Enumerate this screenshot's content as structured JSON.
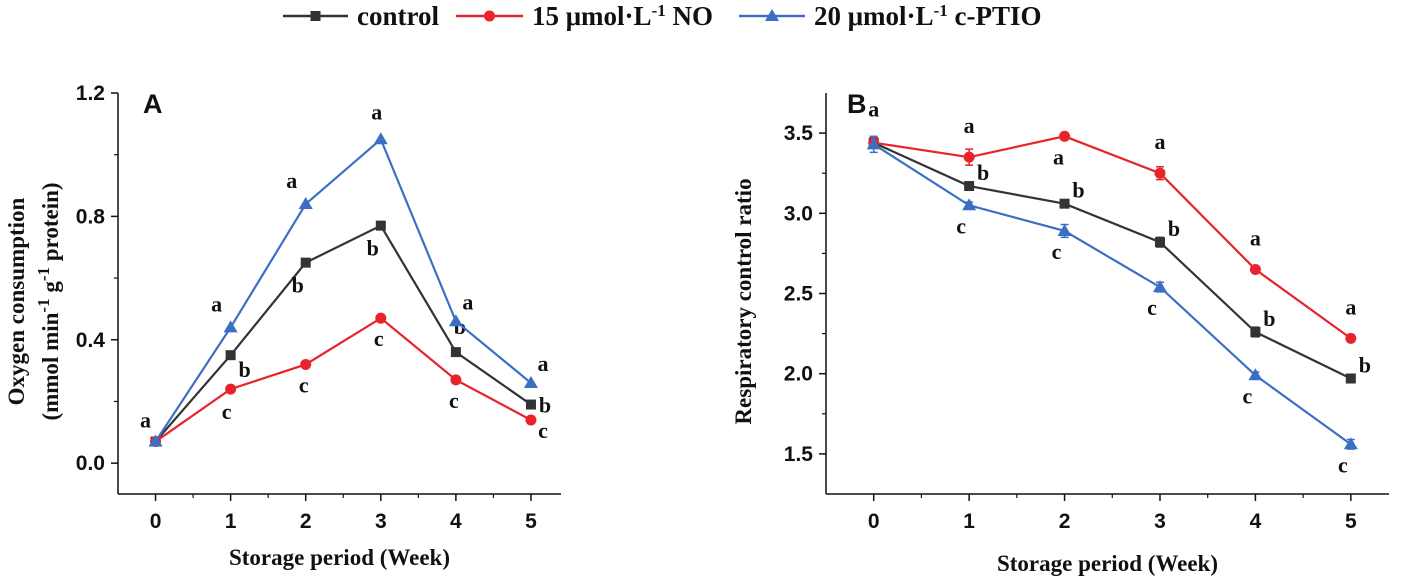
{
  "legend": {
    "items": [
      {
        "parts": [
          {
            "t": "control",
            "sup": false
          }
        ],
        "color": "#333333",
        "marker": "square"
      },
      {
        "parts": [
          {
            "t": "15 μmol·L",
            "sup": false
          },
          {
            "t": "-1",
            "sup": true
          },
          {
            "t": " NO",
            "sup": false
          }
        ],
        "color": "#e8232b",
        "marker": "circle"
      },
      {
        "parts": [
          {
            "t": "20 μmol·L",
            "sup": false
          },
          {
            "t": "-1",
            "sup": true
          },
          {
            "t": " c-PTIO",
            "sup": false
          }
        ],
        "color": "#3a6fc4",
        "marker": "triangle"
      }
    ]
  },
  "chart_data": [
    {
      "type": "line",
      "panel": "A",
      "xlabel": "Storage period (Week)",
      "ylabel_line1": "Oxygen consumption",
      "ylabel_line2_parts": [
        {
          "t": "(mmol min",
          "sup": false
        },
        {
          "t": "-1",
          "sup": true
        },
        {
          "t": " g",
          "sup": false
        },
        {
          "t": "-1",
          "sup": true
        },
        {
          "t": " protein)",
          "sup": false
        }
      ],
      "x": [
        0,
        1,
        2,
        3,
        4,
        5
      ],
      "xticks": [
        "0",
        "1",
        "2",
        "3",
        "4",
        "5"
      ],
      "xlim": [
        -0.5,
        5.4
      ],
      "ylim": [
        -0.1,
        1.2
      ],
      "yticks": [
        0.0,
        0.4,
        0.8,
        1.2
      ],
      "ytick_labels": [
        "0.0",
        "0.4",
        "0.8",
        "1.2"
      ],
      "series": [
        {
          "name": "control",
          "color": "#333333",
          "marker": "square",
          "values": [
            0.07,
            0.35,
            0.65,
            0.77,
            0.36,
            0.19
          ],
          "letters": [
            "",
            "b",
            "b",
            "b",
            "b",
            "b"
          ]
        },
        {
          "name": "15 μmol·L-1 NO",
          "color": "#e8232b",
          "marker": "circle",
          "values": [
            0.07,
            0.24,
            0.32,
            0.47,
            0.27,
            0.14
          ],
          "letters": [
            "",
            "c",
            "c",
            "c",
            "c",
            "c"
          ]
        },
        {
          "name": "20 μmol·L-1 c-PTIO",
          "color": "#3a6fc4",
          "marker": "triangle",
          "values": [
            0.07,
            0.44,
            0.84,
            1.05,
            0.46,
            0.26
          ],
          "letters": [
            "a",
            "a",
            "a",
            "a",
            "a",
            "a"
          ]
        }
      ]
    },
    {
      "type": "line",
      "panel": "B",
      "xlabel": "Storage period (Week)",
      "ylabel": "Respiratory control ratio",
      "x": [
        0,
        1,
        2,
        3,
        4,
        5
      ],
      "xticks": [
        "0",
        "1",
        "2",
        "3",
        "4",
        "5"
      ],
      "xlim": [
        -0.5,
        5.4
      ],
      "ylim": [
        1.25,
        3.75
      ],
      "yticks": [
        1.5,
        2.0,
        2.5,
        3.0,
        3.5
      ],
      "ytick_labels": [
        "1.5",
        "2.0",
        "2.5",
        "3.0",
        "3.5"
      ],
      "series": [
        {
          "name": "control",
          "color": "#333333",
          "marker": "square",
          "values": [
            3.44,
            3.17,
            3.06,
            2.82,
            2.26,
            1.97
          ],
          "errors": [
            0.03,
            0.02,
            0.02,
            0.03,
            0.03,
            0.02
          ],
          "letters": [
            "",
            "b",
            "b",
            "b",
            "b",
            "b"
          ]
        },
        {
          "name": "15 μmol·L-1 NO",
          "color": "#e8232b",
          "marker": "circle",
          "values": [
            3.44,
            3.35,
            3.48,
            3.25,
            2.65,
            2.22
          ],
          "errors": [
            0.02,
            0.05,
            0.02,
            0.04,
            0.02,
            0.02
          ],
          "letters": [
            "a",
            "a",
            "a",
            "a",
            "a",
            "a"
          ]
        },
        {
          "name": "20 μmol·L-1 c-PTIO",
          "color": "#3a6fc4",
          "marker": "triangle",
          "values": [
            3.43,
            3.05,
            2.89,
            2.54,
            1.99,
            1.56
          ],
          "errors": [
            0.05,
            0.02,
            0.04,
            0.03,
            0.02,
            0.03
          ],
          "letters": [
            "",
            "c",
            "c",
            "c",
            "c",
            "c"
          ]
        }
      ]
    }
  ]
}
